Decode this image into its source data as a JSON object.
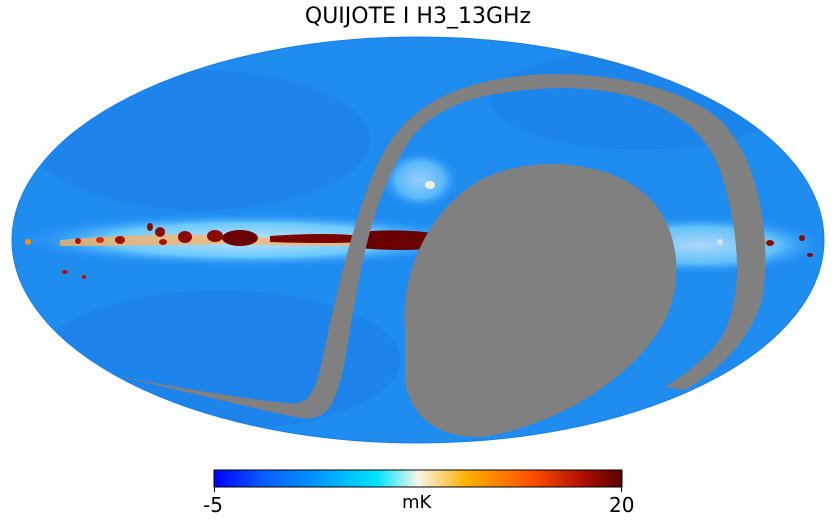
{
  "title": "QUIJOTE I H3_13GHz",
  "projection": "Mollweide",
  "mask_color": "#808080",
  "colorbar": {
    "min_label": "-5",
    "max_label": "20",
    "unit": "mK",
    "min_value": -5,
    "max_value": 20,
    "colors": [
      "#0000ff",
      "#0a5cff",
      "#0096ff",
      "#00e5ff",
      "#f5f5e8",
      "#ffb000",
      "#ff5000",
      "#b01000",
      "#5a0000"
    ]
  }
}
